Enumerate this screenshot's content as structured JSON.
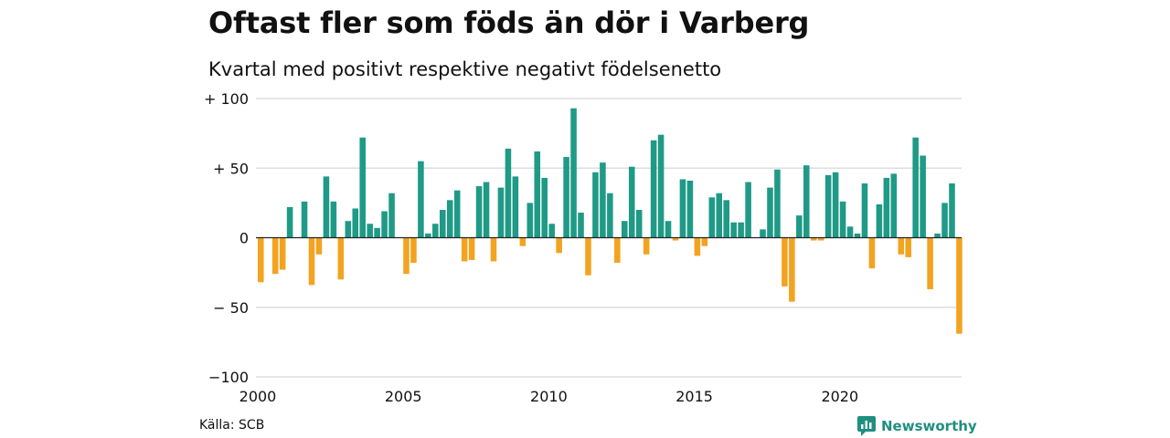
{
  "title": "Oftast fler som föds än dör i Varberg",
  "subtitle": "Kvartal med positivt respektive negativt födelsenetto",
  "source": "Källa: SCB",
  "brand": "Newsworthy",
  "colors": {
    "positive": "#1f9a86",
    "negative": "#f2a31f",
    "grid": "#dddddd",
    "zero": "#222222",
    "brand": "#1f8f7f"
  },
  "chart_data": {
    "type": "bar",
    "x_start_year": 2000,
    "x_period": "quarter",
    "ylim": [
      -100,
      100
    ],
    "y_ticks": [
      {
        "value": 100,
        "label": "+ 100"
      },
      {
        "value": 50,
        "label": "+  50"
      },
      {
        "value": 0,
        "label": "0"
      },
      {
        "value": -50,
        "label": "− 50"
      },
      {
        "value": -100,
        "label": "−100"
      }
    ],
    "x_ticks": [
      {
        "year": 2000,
        "label": "2000"
      },
      {
        "year": 2005,
        "label": "2005"
      },
      {
        "year": 2010,
        "label": "2010"
      },
      {
        "year": 2015,
        "label": "2015"
      },
      {
        "year": 2020,
        "label": "2020"
      }
    ],
    "values": [
      -32,
      0,
      -26,
      -23,
      22,
      0,
      26,
      -34,
      -12,
      44,
      26,
      -30,
      12,
      21,
      72,
      10,
      7,
      19,
      32,
      0,
      -26,
      -18,
      55,
      3,
      10,
      20,
      27,
      34,
      -17,
      -16,
      37,
      40,
      -17,
      36,
      64,
      44,
      -6,
      25,
      62,
      43,
      10,
      -11,
      58,
      93,
      18,
      -27,
      47,
      54,
      32,
      -18,
      12,
      51,
      20,
      -12,
      70,
      74,
      12,
      -2,
      42,
      41,
      -13,
      -6,
      29,
      32,
      27,
      11,
      11,
      40,
      0,
      6,
      36,
      49,
      -35,
      -46,
      16,
      52,
      -2,
      -2,
      45,
      47,
      26,
      8,
      3,
      39,
      -22,
      24,
      43,
      46,
      -12,
      -14,
      72,
      59,
      -37,
      3,
      25,
      39,
      -69
    ]
  }
}
